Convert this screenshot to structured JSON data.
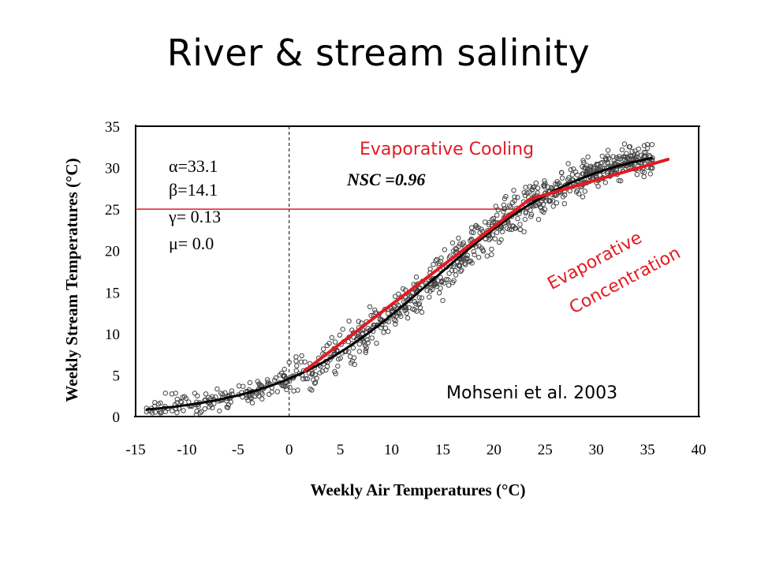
{
  "slide": {
    "title": "River & stream salinity"
  },
  "chart_data": {
    "type": "scatter",
    "xlabel": "Weekly Air Temperatures (°C)",
    "ylabel": "Weekly Stream Temperatures (°C)",
    "xlim": [
      -15,
      40
    ],
    "ylim": [
      0,
      35
    ],
    "xticks": [
      -15,
      -10,
      -5,
      0,
      5,
      10,
      15,
      20,
      25,
      30,
      35,
      40
    ],
    "yticks": [
      0,
      5,
      10,
      15,
      20,
      25,
      30,
      35
    ],
    "parameters": [
      "α=33.1",
      "β=14.1",
      "γ= 0.13",
      "μ= 0.0"
    ],
    "nsc_label": "NSC =0.96",
    "annotations": {
      "evaporative_cooling": "Evaporative Cooling",
      "evaporative_concentration_line1": "Evaporative",
      "evaporative_concentration_line2": "Concentration",
      "citation": "Mohseni et al. 2003"
    },
    "logistic_fit": {
      "alpha": 33.1,
      "beta": 14.1,
      "gamma": 0.13,
      "mu": 0.0
    },
    "reference_lines": {
      "x": 0,
      "y": 25
    },
    "segments": [
      {
        "name": "",
        "points": [
          [
            1.5,
            5.5
          ],
          [
            23.5,
            26.2
          ]
        ]
      },
      {
        "name": "",
        "points": [
          [
            23.5,
            26.2
          ],
          [
            37,
            31
          ]
        ]
      }
    ],
    "colors": {
      "points": "#444444",
      "fit": "#000000",
      "segments": "#e11b22",
      "reference": "#e11b22"
    }
  }
}
